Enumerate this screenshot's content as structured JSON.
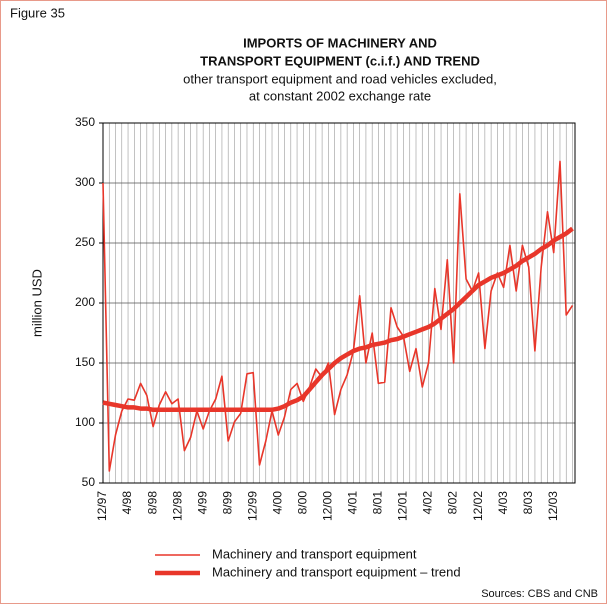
{
  "chart_data": {
    "type": "line",
    "figure_label": "Figure 35",
    "title": [
      "IMPORTS OF MACHINERY AND",
      "TRANSPORT EQUIPMENT (c.i.f.) AND TREND"
    ],
    "subtitle": [
      "other transport equipment and road vehicles excluded,",
      "at constant 2002 exchange rate"
    ],
    "y_label": "million USD",
    "source": "Sources: CBS and CNB",
    "categories": [
      "12/97",
      null,
      null,
      null,
      "4/98",
      null,
      null,
      null,
      "8/98",
      null,
      null,
      null,
      "12/98",
      null,
      null,
      null,
      "4/99",
      null,
      null,
      null,
      "8/99",
      null,
      null,
      null,
      "12/99",
      null,
      null,
      null,
      "4/00",
      null,
      null,
      null,
      "8/00",
      null,
      null,
      null,
      "12/00",
      null,
      null,
      null,
      "4/01",
      null,
      null,
      null,
      "8/01",
      null,
      null,
      null,
      "12/01",
      null,
      null,
      null,
      "4/02",
      null,
      null,
      null,
      "8/02",
      null,
      null,
      null,
      "12/02",
      null,
      null,
      null,
      "4/03",
      null,
      null,
      null,
      "8/03",
      null,
      null,
      null,
      "12/03",
      null,
      null,
      null
    ],
    "series": [
      {
        "name": "Machinery and transport equipment",
        "color": "#e8362a",
        "width": 1.6,
        "values": [
          300,
          60,
          90,
          110,
          120,
          119,
          133,
          123,
          97,
          115,
          126,
          116,
          120,
          77,
          88,
          110,
          95,
          110,
          120,
          139,
          85,
          101,
          108,
          141,
          142,
          65,
          85,
          110,
          90,
          105,
          128,
          133,
          118,
          130,
          145,
          138,
          150,
          107,
          128,
          140,
          160,
          206,
          150,
          175,
          133,
          134,
          196,
          180,
          172,
          143,
          162,
          130,
          150,
          212,
          178,
          236,
          150,
          291,
          220,
          210,
          225,
          162,
          210,
          225,
          213,
          248,
          210,
          248,
          230,
          160,
          230,
          276,
          242,
          318,
          190,
          198
        ]
      },
      {
        "name": "Machinery and transport equipment – trend",
        "color": "#e8362a",
        "width": 4.5,
        "values": [
          117,
          116,
          115,
          114,
          113,
          113,
          112,
          112,
          111,
          111,
          111,
          111,
          111,
          111,
          111,
          111,
          111,
          111,
          111,
          111,
          111,
          111,
          111,
          111,
          111,
          111,
          111,
          111,
          112,
          114,
          117,
          119,
          122,
          128,
          134,
          140,
          145,
          150,
          154,
          157,
          160,
          162,
          163,
          165,
          166,
          167,
          169,
          170,
          172,
          174,
          176,
          178,
          180,
          183,
          187,
          191,
          195,
          200,
          205,
          210,
          215,
          218,
          221,
          223,
          225,
          228,
          231,
          235,
          238,
          241,
          245,
          248,
          252,
          255,
          258,
          262
        ]
      }
    ],
    "ylim": [
      50,
      350
    ],
    "yticks": [
      50,
      100,
      150,
      200,
      250,
      300,
      350
    ],
    "grid": true
  }
}
